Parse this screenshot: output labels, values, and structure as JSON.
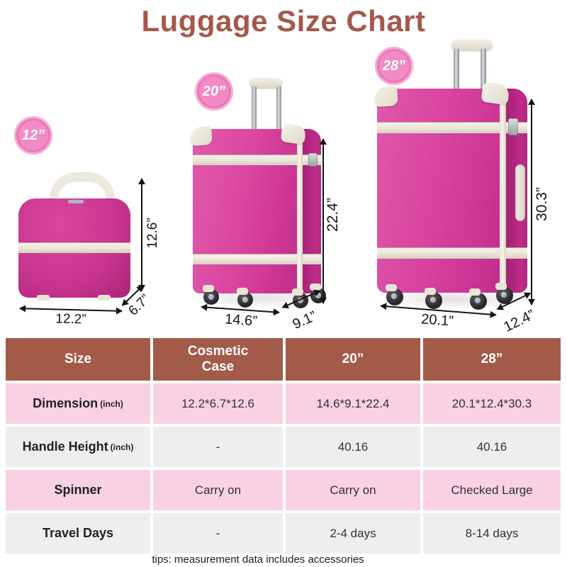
{
  "title": "Luggage Size Chart",
  "luggage": {
    "small": {
      "badge": "12”",
      "height": "12.6”",
      "width": "12.2”",
      "depth": "6.7”"
    },
    "medium": {
      "badge": "20”",
      "height": "22.4”",
      "width": "14.6”",
      "depth": "9.1”"
    },
    "large": {
      "badge": "28”",
      "height": "30.3”",
      "width": "20.1”",
      "depth": "12.4”"
    }
  },
  "table": {
    "headers": [
      "Size",
      "Cosmetic Case",
      "20”",
      "28”"
    ],
    "rows": [
      {
        "label": "Dimension",
        "suffix": "(inch)",
        "values": [
          "12.2*6.7*12.6",
          "14.6*9.1*22.4",
          "20.1*12.4*30.3"
        ]
      },
      {
        "label": "Handle Height",
        "suffix": "(inch)",
        "values": [
          "-",
          "40.16",
          "40.16"
        ]
      },
      {
        "label": "Spinner",
        "suffix": "",
        "values": [
          "Carry on",
          "Carry on",
          "Checked Large"
        ]
      },
      {
        "label": "Travel Days",
        "suffix": "",
        "values": [
          "-",
          "2-4 days",
          "8-14 days"
        ]
      }
    ]
  },
  "footer_tip": "tips: measurement data includes accessories",
  "colors": {
    "title_brown": "#A5584A",
    "header_brown": "#A25A49",
    "row_pink": "#F9D1E4",
    "row_gray": "#EDEFEF",
    "luggage_magenta": "#D5379B",
    "trim_cream": "#EFE9DD",
    "badge_pink": "#F18BC5"
  }
}
